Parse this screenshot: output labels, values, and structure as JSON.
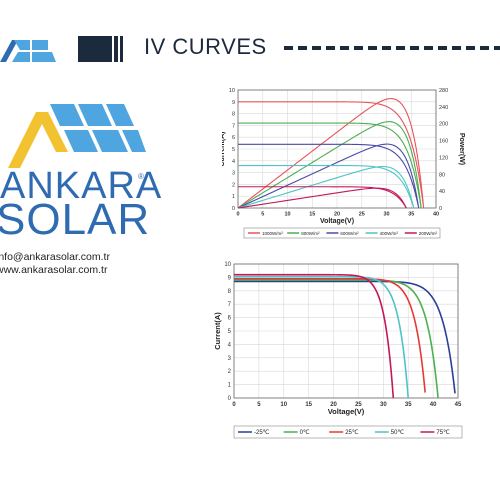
{
  "header": {
    "title": "IV CURVES",
    "accent": "#1c2a3d"
  },
  "brand": {
    "name_top": "ANKARA",
    "name_bottom": "SOLAR",
    "registered": "®",
    "email": "info@ankarasolar.com.tr",
    "website": "www.ankarasolar.com.tr",
    "blue": "#2f6bb0",
    "light_blue": "#4ea5e0",
    "yellow": "#f2c230"
  },
  "chart_data": [
    {
      "type": "line",
      "xlabel": "Voltage(V)",
      "ylabel": "Current(A)",
      "ylabel2": "Power(W)",
      "xlim": [
        0,
        40
      ],
      "ylim": [
        0,
        10
      ],
      "ylim2": [
        0,
        280
      ],
      "xticks": [
        "0",
        "5",
        "10",
        "15",
        "20",
        "25",
        "30",
        "35",
        "40"
      ],
      "yticks": [
        "0",
        "1",
        "2",
        "3",
        "4",
        "5",
        "6",
        "7",
        "8",
        "9",
        "10"
      ],
      "yticks2": [
        "0",
        "20",
        "40",
        "60",
        "80",
        "100",
        "120",
        "140",
        "160",
        "180",
        "200",
        "220",
        "240",
        "260",
        "280"
      ],
      "yticks2_shown": [
        "0",
        "40",
        "80",
        "120",
        "160",
        "200",
        "240",
        "280"
      ],
      "series": [
        {
          "name": "1000W/m²",
          "color": "#e8535a",
          "isc": 9.0,
          "voc": 37.5,
          "pmax": 258,
          "vmp": 30.5
        },
        {
          "name": "800W/m²",
          "color": "#4caf50",
          "isc": 7.2,
          "voc": 37.0,
          "pmax": 208,
          "vmp": 30.0
        },
        {
          "name": "600W/m²",
          "color": "#4a4aa8",
          "isc": 5.4,
          "voc": 36.5,
          "pmax": 152,
          "vmp": 29.5
        },
        {
          "name": "400W/m²",
          "color": "#4fc3c8",
          "isc": 3.6,
          "voc": 35.5,
          "pmax": 100,
          "vmp": 29.0
        },
        {
          "name": "200W/m²",
          "color": "#c2185b",
          "isc": 1.8,
          "voc": 34.0,
          "pmax": 50,
          "vmp": 28.0
        }
      ]
    },
    {
      "type": "line",
      "xlabel": "Voltage(V)",
      "ylabel": "Current(A)",
      "xlim": [
        0,
        45
      ],
      "ylim": [
        0,
        10
      ],
      "xticks": [
        "0",
        "5",
        "10",
        "15",
        "20",
        "25",
        "30",
        "35",
        "40",
        "45"
      ],
      "yticks": [
        "0",
        "1",
        "2",
        "3",
        "4",
        "5",
        "6",
        "7",
        "8",
        "9",
        "10"
      ],
      "series": [
        {
          "name": "-25℃",
          "color": "#2c3e9a",
          "isc": 8.7,
          "voc": 44.5
        },
        {
          "name": "0℃",
          "color": "#4caf50",
          "isc": 8.8,
          "voc": 41.0
        },
        {
          "name": "25℃",
          "color": "#e53935",
          "isc": 8.9,
          "voc": 38.5
        },
        {
          "name": "50℃",
          "color": "#4fc3c8",
          "isc": 9.05,
          "voc": 35.0
        },
        {
          "name": "75℃",
          "color": "#c2185b",
          "isc": 9.2,
          "voc": 32.0
        }
      ]
    }
  ]
}
